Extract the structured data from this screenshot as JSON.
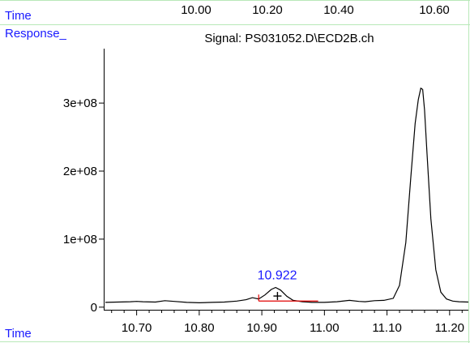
{
  "colors": {
    "label_blue": "#1a1aff",
    "frame_green": "#b8e8b8",
    "signal": "#000000",
    "baseline": "#e00000"
  },
  "header": {
    "time_label": "Time",
    "response_label": "Response_",
    "top_ticks": [
      "10.00",
      "10.20",
      "10.40",
      "10.60"
    ]
  },
  "footer": {
    "time_label": "Time"
  },
  "chart_data": {
    "type": "line",
    "title": "Signal: PS031052.D\\ECD2B.ch",
    "xlabel": "Time",
    "ylabel": "Response_",
    "xlim": [
      10.65,
      11.23
    ],
    "ylim": [
      -5000000,
      380000000
    ],
    "x_ticks": [
      10.7,
      10.8,
      10.9,
      11.0,
      11.1,
      11.2
    ],
    "x_tick_labels": [
      "10.70",
      "10.80",
      "10.90",
      "11.00",
      "11.10",
      "11.20"
    ],
    "y_ticks": [
      0,
      100000000,
      200000000,
      300000000
    ],
    "y_tick_labels": [
      "0",
      "1e+08",
      "2e+08",
      "3e+08"
    ],
    "grid": false,
    "series": [
      {
        "x": [
          10.65,
          10.67,
          10.69,
          10.7,
          10.71,
          10.73,
          10.745,
          10.76,
          10.78,
          10.8,
          10.82,
          10.84,
          10.86,
          10.875,
          10.885,
          10.895,
          10.905,
          10.915,
          10.922,
          10.93,
          10.94,
          10.95,
          10.965,
          10.98,
          11.0,
          11.02,
          11.04,
          11.055,
          11.065,
          11.08,
          11.095,
          11.11,
          11.12,
          11.13,
          11.138,
          11.145,
          11.15,
          11.154,
          11.157,
          11.16,
          11.164,
          11.17,
          11.178,
          11.186,
          11.195,
          11.205,
          11.215,
          11.23
        ],
        "y": [
          7000000,
          7500000,
          8000000,
          8500000,
          8000000,
          7500000,
          9500000,
          8500000,
          7000000,
          6500000,
          7000000,
          7500000,
          9000000,
          11000000,
          14000000,
          12000000,
          18000000,
          26000000,
          29000000,
          25000000,
          16000000,
          10000000,
          8000000,
          7000000,
          7000000,
          8000000,
          10000000,
          8500000,
          8000000,
          9500000,
          10000000,
          13000000,
          32000000,
          95000000,
          190000000,
          270000000,
          305000000,
          322000000,
          320000000,
          290000000,
          225000000,
          130000000,
          55000000,
          22000000,
          12000000,
          9000000,
          8000000,
          7500000
        ]
      }
    ],
    "annotations": [
      {
        "text": "10.922",
        "x": 10.922,
        "y": 29000000
      }
    ],
    "integration_baseline": {
      "x": [
        10.895,
        10.99
      ],
      "y": [
        0,
        0
      ]
    },
    "cursor_marker": {
      "x": 10.925,
      "y": 14000000
    }
  }
}
